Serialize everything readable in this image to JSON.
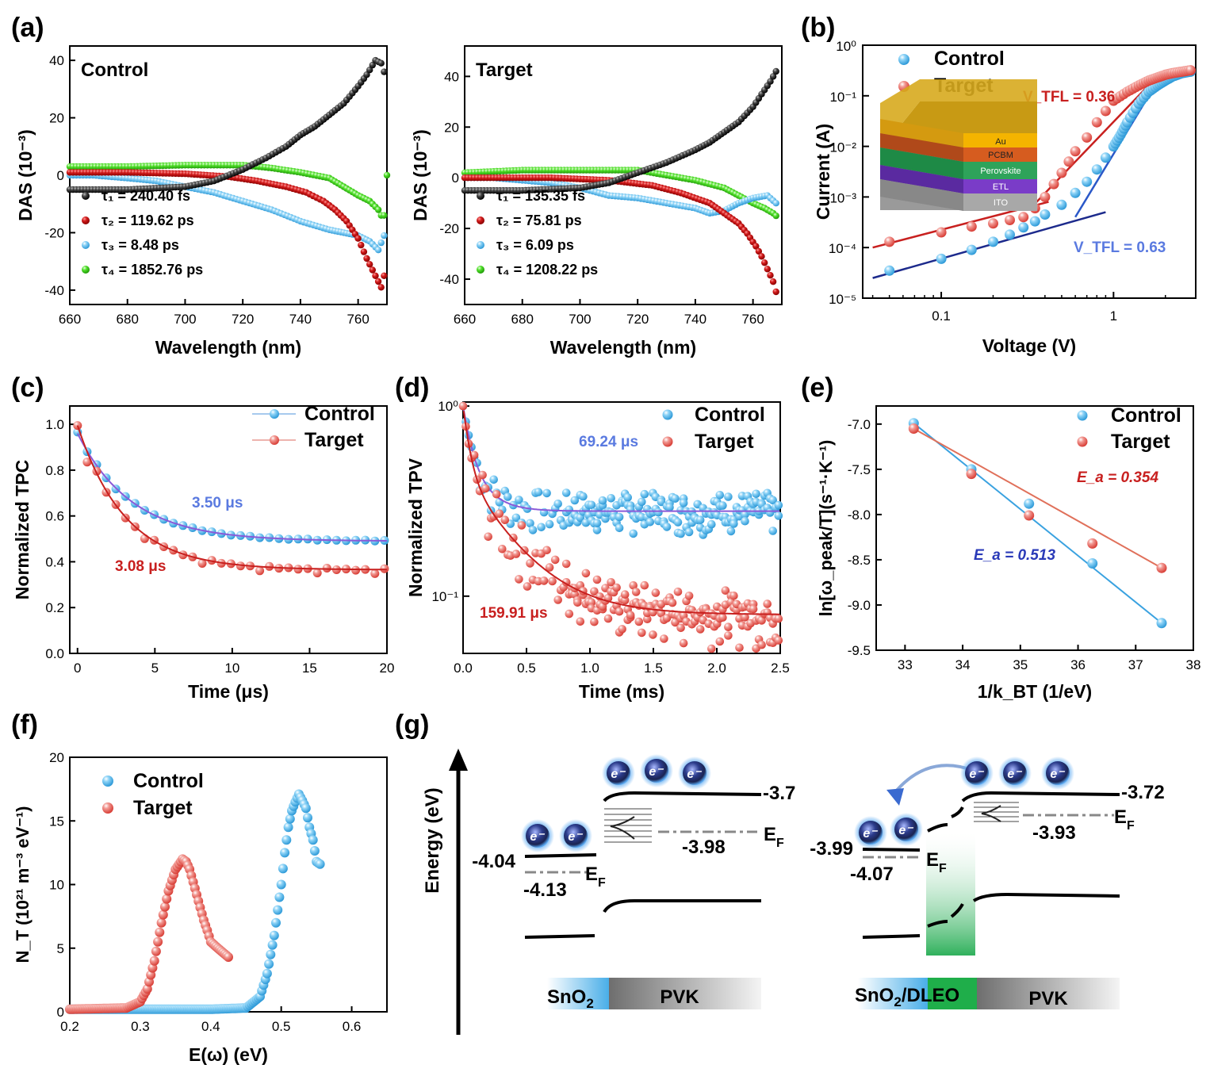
{
  "panels": {
    "a": "(a)",
    "b": "(b)",
    "c": "(c)",
    "d": "(d)",
    "e": "(e)",
    "f": "(f)",
    "g": "(g)"
  },
  "colors": {
    "black": "#1a1a1a",
    "red": "#d42a2a",
    "blue": "#5ab8ec",
    "green": "#3bd11d",
    "line_red": "#c8201f",
    "line_purple": "#8a5ad8",
    "line_darkblue": "#1c2a8c",
    "line_blue": "#3aa2e0",
    "line_salmon": "#e0705a"
  },
  "chart_data": [
    {
      "id": "a1",
      "type": "scatter",
      "title": "Control",
      "xlabel": "Wavelength (nm)",
      "ylabel": "DAS (10⁻³)",
      "xlim": [
        660,
        770
      ],
      "ylim": [
        -45,
        45
      ],
      "xticks": [
        660,
        680,
        700,
        720,
        740,
        760
      ],
      "yticks": [
        -40,
        -20,
        0,
        20,
        40
      ],
      "series": [
        {
          "name": "τ₁ = 240.40 fs",
          "color": "black",
          "x": [
            660,
            680,
            700,
            710,
            720,
            728,
            735,
            740,
            745,
            750,
            755,
            760,
            763,
            766,
            768,
            769
          ],
          "y": [
            -5,
            -5,
            -4,
            -2,
            2,
            6,
            10,
            14,
            17,
            21,
            25,
            31,
            35,
            40,
            39,
            36
          ]
        },
        {
          "name": "τ₂ = 119.62 ps",
          "color": "red",
          "x": [
            660,
            680,
            700,
            715,
            725,
            735,
            742,
            748,
            752,
            756,
            760,
            763,
            766,
            768,
            769
          ],
          "y": [
            1,
            1,
            0.5,
            -0.5,
            -2,
            -4,
            -6,
            -9,
            -12,
            -16,
            -22,
            -29,
            -35,
            -39,
            -35
          ]
        },
        {
          "name": "τ₃ = 8.48 ps",
          "color": "blue",
          "x": [
            660,
            668,
            680,
            690,
            700,
            710,
            720,
            730,
            740,
            750,
            755,
            760,
            764,
            767,
            769
          ],
          "y": [
            0,
            0,
            -1,
            -2,
            -4,
            -6,
            -9,
            -12,
            -16,
            -19,
            -20,
            -21,
            -23,
            -26,
            -21
          ]
        },
        {
          "name": "τ₄ = 1852.76 ps",
          "color": "green",
          "x": [
            660,
            680,
            700,
            720,
            730,
            740,
            750,
            755,
            760,
            764,
            767,
            768,
            769,
            770
          ],
          "y": [
            3,
            3,
            3.5,
            3.5,
            2.5,
            1,
            -1,
            -4,
            -7,
            -9,
            -12,
            -14,
            -14,
            0
          ]
        }
      ]
    },
    {
      "id": "a2",
      "type": "scatter",
      "title": "Target",
      "xlabel": "Wavelength (nm)",
      "ylabel": "DAS (10⁻³)",
      "xlim": [
        660,
        770
      ],
      "ylim": [
        -50,
        52
      ],
      "xticks": [
        660,
        680,
        700,
        720,
        740,
        760
      ],
      "yticks": [
        -40,
        -20,
        0,
        20,
        40
      ],
      "series": [
        {
          "name": "τ₁ = 135.35 fs",
          "color": "black",
          "x": [
            660,
            680,
            700,
            710,
            720,
            730,
            740,
            745,
            750,
            755,
            760,
            763,
            766,
            768
          ],
          "y": [
            -5,
            -5,
            -4,
            -2,
            2,
            6,
            11,
            14,
            18,
            22,
            28,
            33,
            38,
            42
          ]
        },
        {
          "name": "τ₂ = 75.81 ps",
          "color": "red",
          "x": [
            660,
            690,
            710,
            725,
            735,
            745,
            750,
            755,
            758,
            761,
            763,
            765,
            767,
            768
          ],
          "y": [
            0,
            0,
            -1,
            -3,
            -6,
            -10,
            -14,
            -18,
            -22,
            -27,
            -31,
            -36,
            -41,
            -45
          ]
        },
        {
          "name": "τ₃ = 6.09 ps",
          "color": "blue",
          "x": [
            660,
            670,
            680,
            690,
            700,
            710,
            720,
            730,
            740,
            745,
            750,
            755,
            760,
            765,
            768
          ],
          "y": [
            0,
            0,
            -1,
            -2,
            -4,
            -7,
            -8,
            -10,
            -12,
            -14,
            -13,
            -10,
            -8,
            -7,
            -10
          ]
        },
        {
          "name": "τ₄ = 1208.22 ps",
          "color": "green",
          "x": [
            660,
            680,
            700,
            720,
            730,
            740,
            750,
            755,
            760,
            764,
            767,
            768
          ],
          "y": [
            2,
            3,
            3,
            3,
            1,
            -1,
            -4,
            -7,
            -10,
            -12,
            -14,
            -15
          ]
        }
      ]
    },
    {
      "id": "b",
      "type": "scatter",
      "xlabel": "Voltage (V)",
      "ylabel": "Current (A)",
      "xscale": "log",
      "yscale": "log",
      "xlim": [
        0.035,
        3
      ],
      "ylim": [
        1e-05,
        1
      ],
      "xticks": [
        "0.1",
        "1"
      ],
      "yticks": [
        "10⁰",
        "10⁻¹",
        "10⁻²",
        "10⁻³",
        "10⁻⁴",
        "10⁻⁵"
      ],
      "series": [
        {
          "name": "Control",
          "color": "blue",
          "x": [
            0.05,
            0.1,
            0.15,
            0.2,
            0.25,
            0.3,
            0.35,
            0.4,
            0.5,
            0.6,
            0.7,
            0.8,
            0.9,
            1,
            1.1,
            1.2,
            1.4,
            1.6,
            1.8,
            2,
            2.2,
            2.5,
            2.8
          ],
          "y": [
            3.5e-05,
            6e-05,
            9e-05,
            0.00013,
            0.00018,
            0.00025,
            0.00033,
            0.00045,
            0.0007,
            0.0012,
            0.002,
            0.0035,
            0.006,
            0.01,
            0.017,
            0.03,
            0.07,
            0.12,
            0.16,
            0.2,
            0.24,
            0.28,
            0.3
          ]
        },
        {
          "name": "Target",
          "color": "red",
          "x": [
            0.05,
            0.1,
            0.15,
            0.2,
            0.25,
            0.3,
            0.35,
            0.4,
            0.45,
            0.5,
            0.55,
            0.6,
            0.7,
            0.8,
            0.9,
            1,
            1.2,
            1.4,
            1.6,
            1.8,
            2,
            2.2,
            2.5,
            2.8
          ],
          "y": [
            0.00013,
            0.0002,
            0.00026,
            0.0003,
            0.00035,
            0.0004,
            0.0006,
            0.001,
            0.0018,
            0.003,
            0.005,
            0.008,
            0.015,
            0.03,
            0.05,
            0.08,
            0.12,
            0.16,
            0.2,
            0.23,
            0.26,
            0.28,
            0.3,
            0.32
          ]
        }
      ],
      "annotations": [
        "V_TFL = 0.36",
        "V_TFL = 0.63"
      ],
      "inset_layers": [
        "Au",
        "PCBM",
        "Perovskite",
        "ETL",
        "ITO"
      ]
    },
    {
      "id": "c",
      "type": "line",
      "xlabel": "Time (μs)",
      "ylabel": "Normalized TPC",
      "xlim": [
        -0.5,
        20
      ],
      "ylim": [
        0,
        1.08
      ],
      "xticks": [
        0,
        5,
        10,
        15,
        20
      ],
      "yticks": [
        0.0,
        0.2,
        0.4,
        0.6,
        0.8,
        1.0
      ],
      "series": [
        {
          "name": "Control",
          "color": "blue",
          "fit": {
            "y0": 0.49,
            "a": 0.47,
            "tau": 3.5
          },
          "noise": [
            0.02,
            -0.01,
            0.015,
            0.0,
            -0.012,
            0.01
          ]
        },
        {
          "name": "Target",
          "color": "red",
          "fit": {
            "y0": 0.365,
            "a": 0.63,
            "tau": 3.08
          },
          "noise": [
            0.0,
            -0.15,
            0.03,
            -0.02,
            0.01,
            -0.03
          ]
        }
      ],
      "annotations": [
        "3.50 μs",
        "3.08 μs"
      ]
    },
    {
      "id": "d",
      "type": "scatter",
      "xlabel": "Time (ms)",
      "ylabel": "Normalized TPV",
      "yscale": "log",
      "xlim": [
        0,
        2.5
      ],
      "ylim": [
        0.05,
        1.05
      ],
      "xticks": [
        0.0,
        0.5,
        1.0,
        1.5,
        2.0,
        2.5
      ],
      "yticks": [
        "10⁰",
        "10⁻¹"
      ],
      "series": [
        {
          "name": "Control",
          "color": "blue",
          "fit": {
            "y0": 0.28,
            "a": 0.72,
            "tau": 0.06,
            "tail": 0.15
          }
        },
        {
          "name": "Target",
          "color": "red",
          "fit": {
            "y0": 0.08,
            "a": 0.92,
            "tau": 0.05,
            "tail": 0.35
          }
        }
      ],
      "annotations": [
        "69.24 μs",
        "159.91 μs"
      ]
    },
    {
      "id": "e",
      "type": "scatter",
      "xlabel": "1/k_BT (1/eV)",
      "ylabel": "ln[ω_peak/T](s⁻¹·K⁻¹)",
      "xlim": [
        32.5,
        38
      ],
      "ylim": [
        -9.5,
        -6.8
      ],
      "xticks": [
        33,
        34,
        35,
        36,
        37,
        38
      ],
      "yticks": [
        -7.0,
        -7.5,
        -8.0,
        -8.5,
        -9.0,
        -9.5
      ],
      "series": [
        {
          "name": "Control",
          "color": "blue",
          "x": [
            33.15,
            34.15,
            35.15,
            36.25,
            37.45
          ],
          "y": [
            -6.99,
            -7.5,
            -7.88,
            -8.54,
            -9.2
          ]
        },
        {
          "name": "Target",
          "color": "red",
          "x": [
            33.15,
            34.15,
            35.15,
            36.25,
            37.45
          ],
          "y": [
            -7.05,
            -7.55,
            -8.01,
            -8.32,
            -8.59
          ]
        }
      ],
      "annotations": [
        "E_a = 0.354",
        "E_a = 0.513"
      ]
    },
    {
      "id": "f",
      "type": "scatter",
      "xlabel": "E(ω) (eV)",
      "ylabel": "N_T (10²¹ m⁻³ eV⁻¹)",
      "xlim": [
        0.2,
        0.65
      ],
      "ylim": [
        0,
        20
      ],
      "xticks": [
        0.2,
        0.3,
        0.4,
        0.5,
        0.6
      ],
      "yticks": [
        0,
        5,
        10,
        15,
        20
      ],
      "series": [
        {
          "name": "Control",
          "color": "blue",
          "x": [
            0.2,
            0.3,
            0.4,
            0.45,
            0.47,
            0.48,
            0.49,
            0.5,
            0.505,
            0.51,
            0.515,
            0.52,
            0.525,
            0.53,
            0.535,
            0.54,
            0.545,
            0.55,
            0.555
          ],
          "y": [
            0.2,
            0.2,
            0.2,
            0.3,
            1.2,
            3,
            6,
            10,
            12.5,
            14.5,
            15.8,
            16.5,
            17.1,
            16.6,
            16,
            14.5,
            13.5,
            11.8,
            11.6
          ]
        },
        {
          "name": "Target",
          "color": "red",
          "x": [
            0.2,
            0.28,
            0.3,
            0.31,
            0.32,
            0.33,
            0.34,
            0.35,
            0.36,
            0.365,
            0.37,
            0.375,
            0.38,
            0.385,
            0.39,
            0.395,
            0.4,
            0.41,
            0.425
          ],
          "y": [
            0.2,
            0.3,
            0.8,
            1.8,
            4,
            7,
            9.5,
            11.2,
            12,
            11.8,
            11.2,
            10.2,
            9.2,
            8.2,
            7.2,
            6.4,
            5.5,
            5,
            4.3
          ]
        }
      ]
    }
  ],
  "diagram_g": {
    "ylabel": "Energy (eV)",
    "left": {
      "cb_sno2": "-4.04",
      "ef_sno2": "-4.13",
      "cb_pvk": "-3.7",
      "ef_pvk": "-3.98",
      "ef_label": "E",
      "ef_sub": "F",
      "sno2_label": "SnO",
      "sno2_sub": "2",
      "pvk_label": "PVK"
    },
    "right": {
      "cb_sno2": "-3.99",
      "ef_sno2": "-4.07",
      "cb_pvk": "-3.72",
      "ef_pvk": "-3.93",
      "ef_label": "E",
      "ef_sub": "F",
      "sno2_label": "SnO",
      "sno2_sub": "2",
      "dleo_label": "/DLEO",
      "pvk_label": "PVK"
    },
    "electron": "e⁻"
  }
}
